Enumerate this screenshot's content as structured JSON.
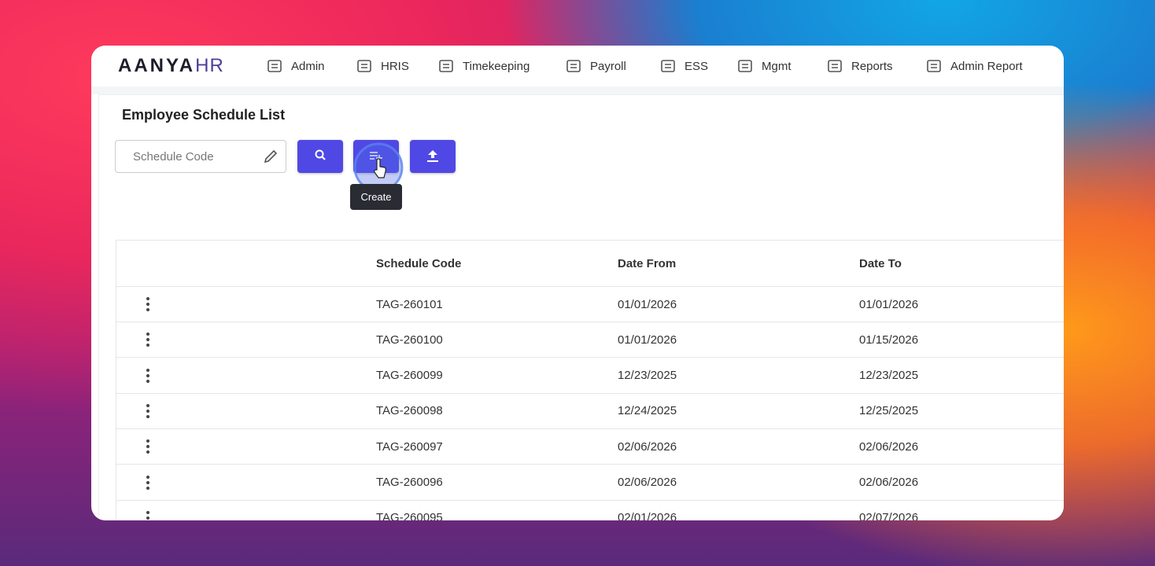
{
  "logo": {
    "brand": "AANYA",
    "suffix": "HR"
  },
  "nav": [
    "Admin",
    "HRIS",
    "Timekeeping",
    "Payroll",
    "ESS",
    "Mgmt",
    "Reports",
    "Admin Report"
  ],
  "page": {
    "title": "Employee Schedule List",
    "search_placeholder": "Schedule Code",
    "tooltip": "Create"
  },
  "table": {
    "headers": [
      "",
      "Schedule Code",
      "Date From",
      "Date To"
    ],
    "rows": [
      [
        "TAG-260101",
        "01/01/2026",
        "01/01/2026"
      ],
      [
        "TAG-260100",
        "01/01/2026",
        "01/15/2026"
      ],
      [
        "TAG-260099",
        "12/23/2025",
        "12/23/2025"
      ],
      [
        "TAG-260098",
        "12/24/2025",
        "12/25/2025"
      ],
      [
        "TAG-260097",
        "02/06/2026",
        "02/06/2026"
      ],
      [
        "TAG-260096",
        "02/06/2026",
        "02/06/2026"
      ],
      [
        "TAG-260095",
        "02/01/2026",
        "02/07/2026"
      ]
    ]
  }
}
